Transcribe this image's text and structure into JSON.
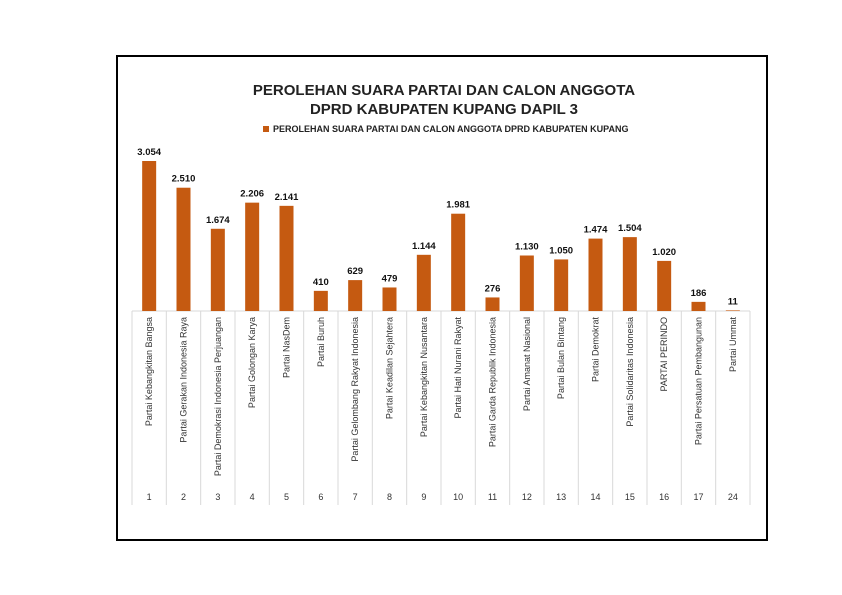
{
  "chart_data": {
    "type": "bar",
    "title": [
      "PEROLEHAN SUARA PARTAI DAN CALON ANGGOTA",
      "DPRD KABUPATEN KUPANG DAPIL 3"
    ],
    "legend": {
      "label": "PEROLEHAN SUARA PARTAI DAN CALON ANGGOTA DPRD KABUPATEN KUPANG",
      "position": "top"
    },
    "color": "#C55A11",
    "categories": [
      "Partai Kebangkitan Bangsa",
      "Partai Gerakan Indonesia Raya",
      "Partai Demokrasi Indonesia Perjuangan",
      "Partai Golongan Karya",
      "Partai NasDem",
      "Partai Buruh",
      "Partai Gelombang Rakyat Indonesia",
      "Partai Keadilan Sejahtera",
      "Partai Kebangkitan Nusantara",
      "Partai Hati Nurani Rakyat",
      "Partai Garda Republik Indonesia",
      "Partai Amanat Nasional",
      "Partai Bulan Bintang",
      "Partai Demokrat",
      "Partai Solidaritas Indonesia",
      "PARTAI PERINDO",
      "Partai Persatuan Pembangunan",
      "Partai Ummat"
    ],
    "numbers": [
      "1",
      "2",
      "3",
      "4",
      "5",
      "6",
      "7",
      "8",
      "9",
      "10",
      "11",
      "12",
      "13",
      "14",
      "15",
      "16",
      "17",
      "24"
    ],
    "values": [
      3054,
      2510,
      1674,
      2206,
      2141,
      410,
      629,
      479,
      1144,
      1981,
      276,
      1130,
      1050,
      1474,
      1504,
      1020,
      186,
      11
    ],
    "data_labels": [
      "3.054",
      "2.510",
      "1.674",
      "2.206",
      "2.141",
      "410",
      "629",
      "479",
      "1.144",
      "1.981",
      "276",
      "1.130",
      "1.050",
      "1.474",
      "1.504",
      "1.020",
      "186",
      "11"
    ],
    "ylim": [
      0,
      3054
    ],
    "grid": false,
    "xlabel": "",
    "ylabel": ""
  }
}
